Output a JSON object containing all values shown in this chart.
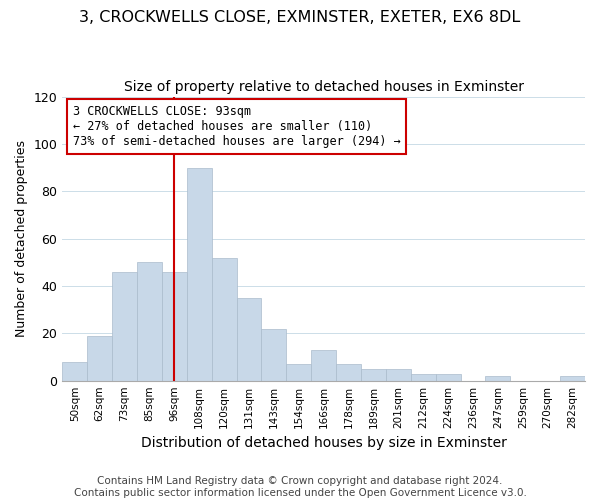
{
  "title": "3, CROCKWELLS CLOSE, EXMINSTER, EXETER, EX6 8DL",
  "subtitle": "Size of property relative to detached houses in Exminster",
  "xlabel": "Distribution of detached houses by size in Exminster",
  "ylabel": "Number of detached properties",
  "bar_labels": [
    "50sqm",
    "62sqm",
    "73sqm",
    "85sqm",
    "96sqm",
    "108sqm",
    "120sqm",
    "131sqm",
    "143sqm",
    "154sqm",
    "166sqm",
    "178sqm",
    "189sqm",
    "201sqm",
    "212sqm",
    "224sqm",
    "236sqm",
    "247sqm",
    "259sqm",
    "270sqm",
    "282sqm"
  ],
  "bar_heights": [
    8,
    19,
    46,
    50,
    46,
    90,
    52,
    35,
    22,
    7,
    13,
    7,
    5,
    5,
    3,
    3,
    0,
    2,
    0,
    0,
    2
  ],
  "bar_color": "#c8d8e8",
  "bar_edge_color": "#aabbcc",
  "vline_x": 4,
  "vline_color": "#cc0000",
  "ylim": [
    0,
    120
  ],
  "yticks": [
    0,
    20,
    40,
    60,
    80,
    100,
    120
  ],
  "annotation_title": "3 CROCKWELLS CLOSE: 93sqm",
  "annotation_line1": "← 27% of detached houses are smaller (110)",
  "annotation_line2": "73% of semi-detached houses are larger (294) →",
  "annotation_box_color": "#ffffff",
  "annotation_box_edge_color": "#cc0000",
  "footer1": "Contains HM Land Registry data © Crown copyright and database right 2024.",
  "footer2": "Contains public sector information licensed under the Open Government Licence v3.0.",
  "title_fontsize": 11.5,
  "subtitle_fontsize": 10,
  "xlabel_fontsize": 10,
  "ylabel_fontsize": 9,
  "footer_fontsize": 7.5
}
